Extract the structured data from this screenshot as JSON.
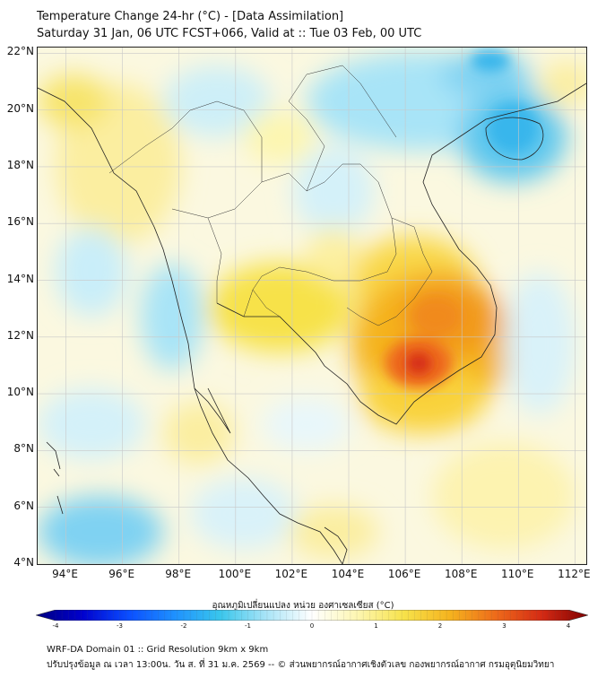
{
  "title": {
    "line1": "Temperature Change 24-hr (°C) - [Data Assimilation]",
    "line2": "Saturday 31 Jan, 06 UTC FCST+066, Valid at :: Tue 03 Feb, 00 UTC"
  },
  "axes": {
    "lat_labels": [
      "22°N",
      "20°N",
      "18°N",
      "16°N",
      "14°N",
      "12°N",
      "10°N",
      "8°N",
      "6°N",
      "4°N"
    ],
    "lon_labels": [
      "94°E",
      "96°E",
      "98°E",
      "100°E",
      "102°E",
      "104°E",
      "106°E",
      "108°E",
      "110°E",
      "112°E"
    ],
    "lat_range": [
      4,
      22.2
    ],
    "lon_range": [
      93,
      112.4
    ]
  },
  "colorbar": {
    "title": "อุณหภูมิเปลี่ยนแปลง หน่วย องศาเซลเซียส (°C)",
    "ticks": [
      "-4",
      "-3",
      "-2",
      "-1",
      "0",
      "1",
      "2",
      "3",
      "4"
    ],
    "range": [
      -4,
      4
    ],
    "colors": [
      "#00007f",
      "#0000cd",
      "#0a4dff",
      "#1e90ff",
      "#39c6ec",
      "#a8e4f7",
      "#ffffff",
      "#fdf6b0",
      "#f7e24a",
      "#f5b31e",
      "#ee6a1a",
      "#d42a14",
      "#7f0000"
    ]
  },
  "field": {
    "description_hotspots": [
      {
        "lon": 106.6,
        "lat": 11.3,
        "value": 3.0
      },
      {
        "lon": 107.0,
        "lat": 12.8,
        "value": 2.2
      },
      {
        "lon": 106.0,
        "lat": 14.5,
        "value": 1.4
      },
      {
        "lon": 109.5,
        "lat": 19.5,
        "value": -1.6
      },
      {
        "lon": 109.0,
        "lat": 21.3,
        "value": -1.8
      },
      {
        "lon": 97.5,
        "lat": 17.0,
        "value": 0.9
      },
      {
        "lon": 101.0,
        "lat": 14.0,
        "value": 0.8
      },
      {
        "lon": 96.0,
        "lat": 5.3,
        "value": -0.8
      },
      {
        "lon": 101.5,
        "lat": 5.0,
        "value": 0.5
      }
    ]
  },
  "footer": {
    "line1": "WRF-DA Domain 01 :: Grid Resolution 9km x 9km",
    "line2": "ปรับปรุงข้อมูล ณ เวลา 13:00น. วัน ส. ที่ 31 ม.ค. 2569 -- © ส่วนพยากรณ์อากาศเชิงตัวเลข กองพยากรณ์อากาศ กรมอุตุนิยมวิทยา"
  }
}
